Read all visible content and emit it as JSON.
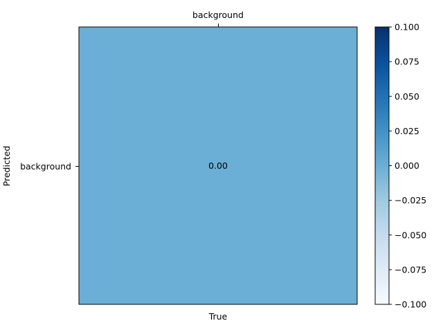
{
  "chart_data": {
    "type": "heatmap",
    "title": "",
    "xlabel": "True",
    "ylabel": "Predicted",
    "x_categories": [
      "background"
    ],
    "y_categories": [
      "background"
    ],
    "values": [
      [
        0.0
      ]
    ],
    "cell_labels": [
      [
        "0.00"
      ]
    ],
    "x_tick_position": "top",
    "colormap": "Blues",
    "colorbar": {
      "min": -0.1,
      "max": 0.1,
      "ticks": [
        "0.100",
        "0.075",
        "0.050",
        "0.025",
        "0.000",
        "−0.025",
        "−0.050",
        "−0.075",
        "−0.100"
      ]
    },
    "colors": {
      "cell": "#6baed6",
      "cmap_low": "#f7fbff",
      "cmap_mid": "#6baed6",
      "cmap_high": "#08306b"
    }
  }
}
